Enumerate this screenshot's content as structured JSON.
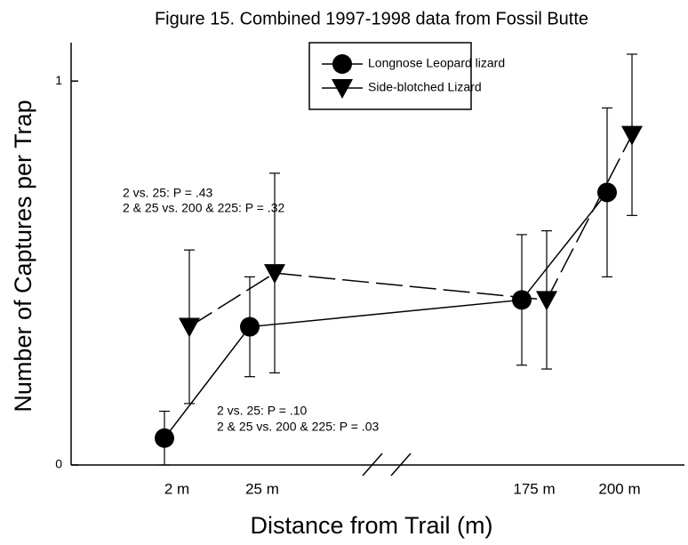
{
  "chart_data": {
    "type": "line",
    "title": "Figure 15. Combined 1997-1998 data from Fossil Butte",
    "xlabel": "Distance from Trail (m)",
    "ylabel": "Number of Captures per Trap",
    "categories": [
      "2 m",
      "25 m",
      "175 m",
      "200 m"
    ],
    "ylim": [
      0,
      1.1
    ],
    "yticks": [
      0,
      1
    ],
    "legend": "top-center",
    "series": [
      {
        "name": "Longnose Leopard lizard",
        "color": "#000000",
        "marker": "circle",
        "linestyle": "solid",
        "values": [
          0.07,
          0.36,
          0.43,
          0.71
        ],
        "errors": [
          0.07,
          0.13,
          0.17,
          0.22
        ]
      },
      {
        "name": "Side-blotched Lizard",
        "color": "#000000",
        "marker": "triangle-down",
        "linestyle": "dashed",
        "values": [
          0.36,
          0.5,
          0.43,
          0.86
        ],
        "errors": [
          0.2,
          0.26,
          0.18,
          0.21
        ]
      }
    ],
    "annotations": [
      "2 vs. 25: P = .43",
      "2 & 25 vs. 200 & 225: P = .32",
      "2 vs. 25: P = .10",
      "2 & 25 vs. 200 & 225: P = .03"
    ]
  }
}
